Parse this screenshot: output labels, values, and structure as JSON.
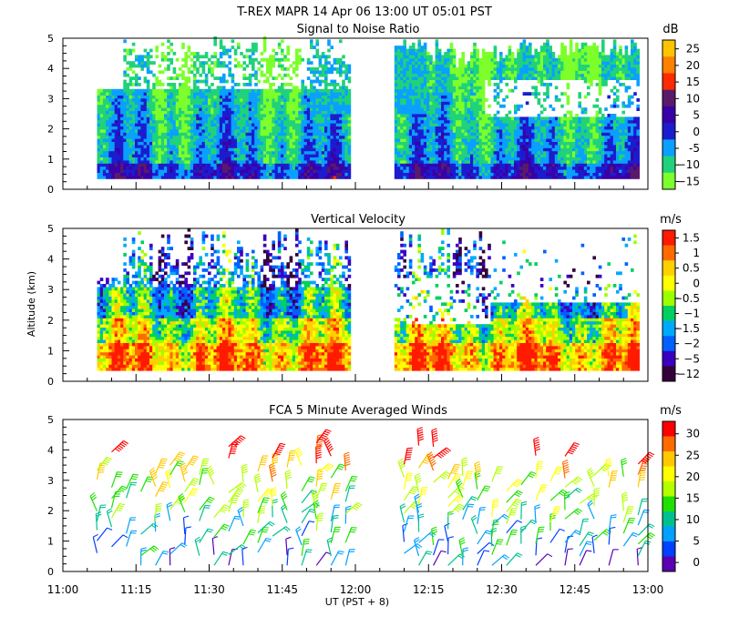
{
  "header": {
    "title_line": "T-REX  MAPR 14 Apr 06  13:00 UT  05:01  PST"
  },
  "chart_data": [
    {
      "type": "heatmap",
      "title": "Signal to Noise Ratio",
      "ylabel": "",
      "ylim": [
        0,
        5
      ],
      "y_ticks": [
        "0",
        "1",
        "2",
        "3",
        "4",
        "5"
      ],
      "data_gap_ut": [
        "12:00",
        "12:08"
      ],
      "colorbar": {
        "unit": "dB",
        "labels": [
          "25",
          "20",
          "15",
          "10",
          "5",
          "0",
          "-5",
          "−10",
          "−15"
        ],
        "colors": [
          "#ffc400",
          "#ff7f00",
          "#ff2b00",
          "#5a1a6a",
          "#3a00a8",
          "#1c1ccf",
          "#0aa0ff",
          "#20d27a",
          "#7dff2b"
        ]
      }
    },
    {
      "type": "heatmap",
      "title": "Vertical Velocity",
      "ylabel": "Altitude (km)",
      "ylim": [
        0,
        5
      ],
      "y_ticks": [
        "0",
        "1",
        "2",
        "3",
        "4",
        "5"
      ],
      "colorbar": {
        "unit": "m/s",
        "labels": [
          "1.5",
          "1",
          "0.5",
          "0",
          "−0.5",
          "−1",
          "−1.5",
          "−2",
          "−5",
          "−12"
        ],
        "colors": [
          "#ff1a00",
          "#ff6a00",
          "#ffd000",
          "#ffff00",
          "#9cff00",
          "#00d060",
          "#00a8ff",
          "#0060ff",
          "#3a00c0",
          "#34003a"
        ]
      }
    },
    {
      "type": "scatter",
      "subtype": "wind-barbs",
      "title": "FCA 5 Minute Averaged Winds",
      "xlabel": "UT  (PST + 8)",
      "ylim": [
        0,
        5
      ],
      "y_ticks": [
        "0",
        "1",
        "2",
        "3",
        "4",
        "5"
      ],
      "x_ticks": [
        "11:00",
        "11:15",
        "11:30",
        "11:45",
        "12:00",
        "12:15",
        "12:30",
        "12:45",
        "13:00"
      ],
      "xlim_ut": [
        "11:00",
        "13:00"
      ],
      "colorbar": {
        "unit": "m/s",
        "labels": [
          "30",
          "25",
          "20",
          "15",
          "10",
          "5",
          "0"
        ],
        "colors": [
          "#ff0000",
          "#ff6a00",
          "#ffc800",
          "#ffff00",
          "#b4ff00",
          "#20e000",
          "#00c090",
          "#00a0ff",
          "#0040ff",
          "#5a00b0"
        ]
      }
    }
  ]
}
